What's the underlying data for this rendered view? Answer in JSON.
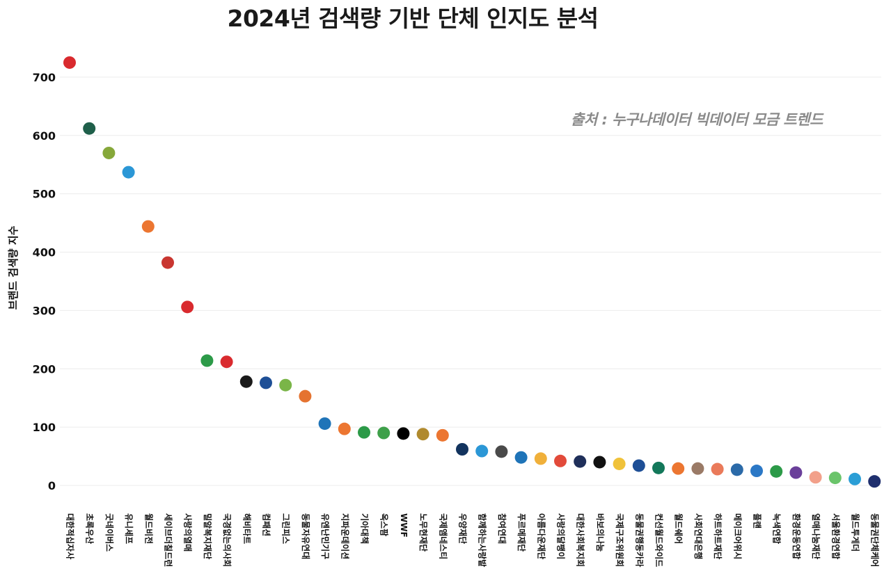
{
  "chart_data": {
    "type": "scatter",
    "title": "2024년 검색량 기반 단체 인지도 분석",
    "ylabel": "브랜드 검색량 지수",
    "xlabel": "",
    "ylim": [
      0,
      750
    ],
    "yticks": [
      0,
      100,
      200,
      300,
      400,
      500,
      600,
      700
    ],
    "grid": true,
    "source_note": "출처 : 누구나데이터 빅데이터 모금 트렌드",
    "categories": [
      "대한적십자사",
      "초록우산",
      "굿네이버스",
      "유니세프",
      "월드비전",
      "세이브더칠드런",
      "사랑의열매",
      "밀알복지재단",
      "국경없는의사회",
      "해비타트",
      "컴패션",
      "그린피스",
      "동물자유연대",
      "유엔난민기구",
      "지파운데이션",
      "기아대책",
      "옥스팜",
      "WWF",
      "노무현재단",
      "국제앰네스티",
      "우양재단",
      "함께하는사랑밭",
      "참여연대",
      "푸르메재단",
      "아름다운재단",
      "사랑의달팽이",
      "대한사회복지회",
      "바보의나눔",
      "국제구조위원회",
      "동물권행동카라",
      "컨선월드와이드",
      "월드쉐어",
      "사회연대은행",
      "하트하트재단",
      "메이크어위시",
      "플랜",
      "녹색연합",
      "환경운동연합",
      "열매나눔재단",
      "서울환경연합",
      "월드투게더",
      "동물권단체케어"
    ],
    "values": [
      725,
      612,
      570,
      537,
      444,
      382,
      306,
      214,
      212,
      178,
      176,
      172,
      153,
      106,
      97,
      91,
      90,
      89,
      88,
      86,
      62,
      59,
      58,
      48,
      46,
      42,
      41,
      40,
      37,
      34,
      30,
      29,
      29,
      28,
      27,
      25,
      24,
      22,
      14,
      13,
      11,
      7
    ],
    "colors": [
      "#d92a2e",
      "#1f5f4a",
      "#86a83a",
      "#2b97d6",
      "#ec7631",
      "#c93630",
      "#d92a2e",
      "#2c9a48",
      "#d92a2e",
      "#1a1a1a",
      "#1e4f96",
      "#7ab548",
      "#e57330",
      "#1f74b8",
      "#ec7631",
      "#2c9a48",
      "#3ea04a",
      "#000000",
      "#b08a2e",
      "#ec7631",
      "#12335e",
      "#2b97d6",
      "#4a4a4a",
      "#1f74b8",
      "#f0b03a",
      "#e24a3a",
      "#1f2f5a",
      "#111111",
      "#f0c23a",
      "#1e4f96",
      "#13785a",
      "#ec7631",
      "#9a7a66",
      "#ea7a5a",
      "#2b6aa8",
      "#2b78c6",
      "#2c9a48",
      "#6a3f9a",
      "#f2a08a",
      "#6ac46a",
      "#2b9ed6",
      "#1f2f6e"
    ]
  }
}
